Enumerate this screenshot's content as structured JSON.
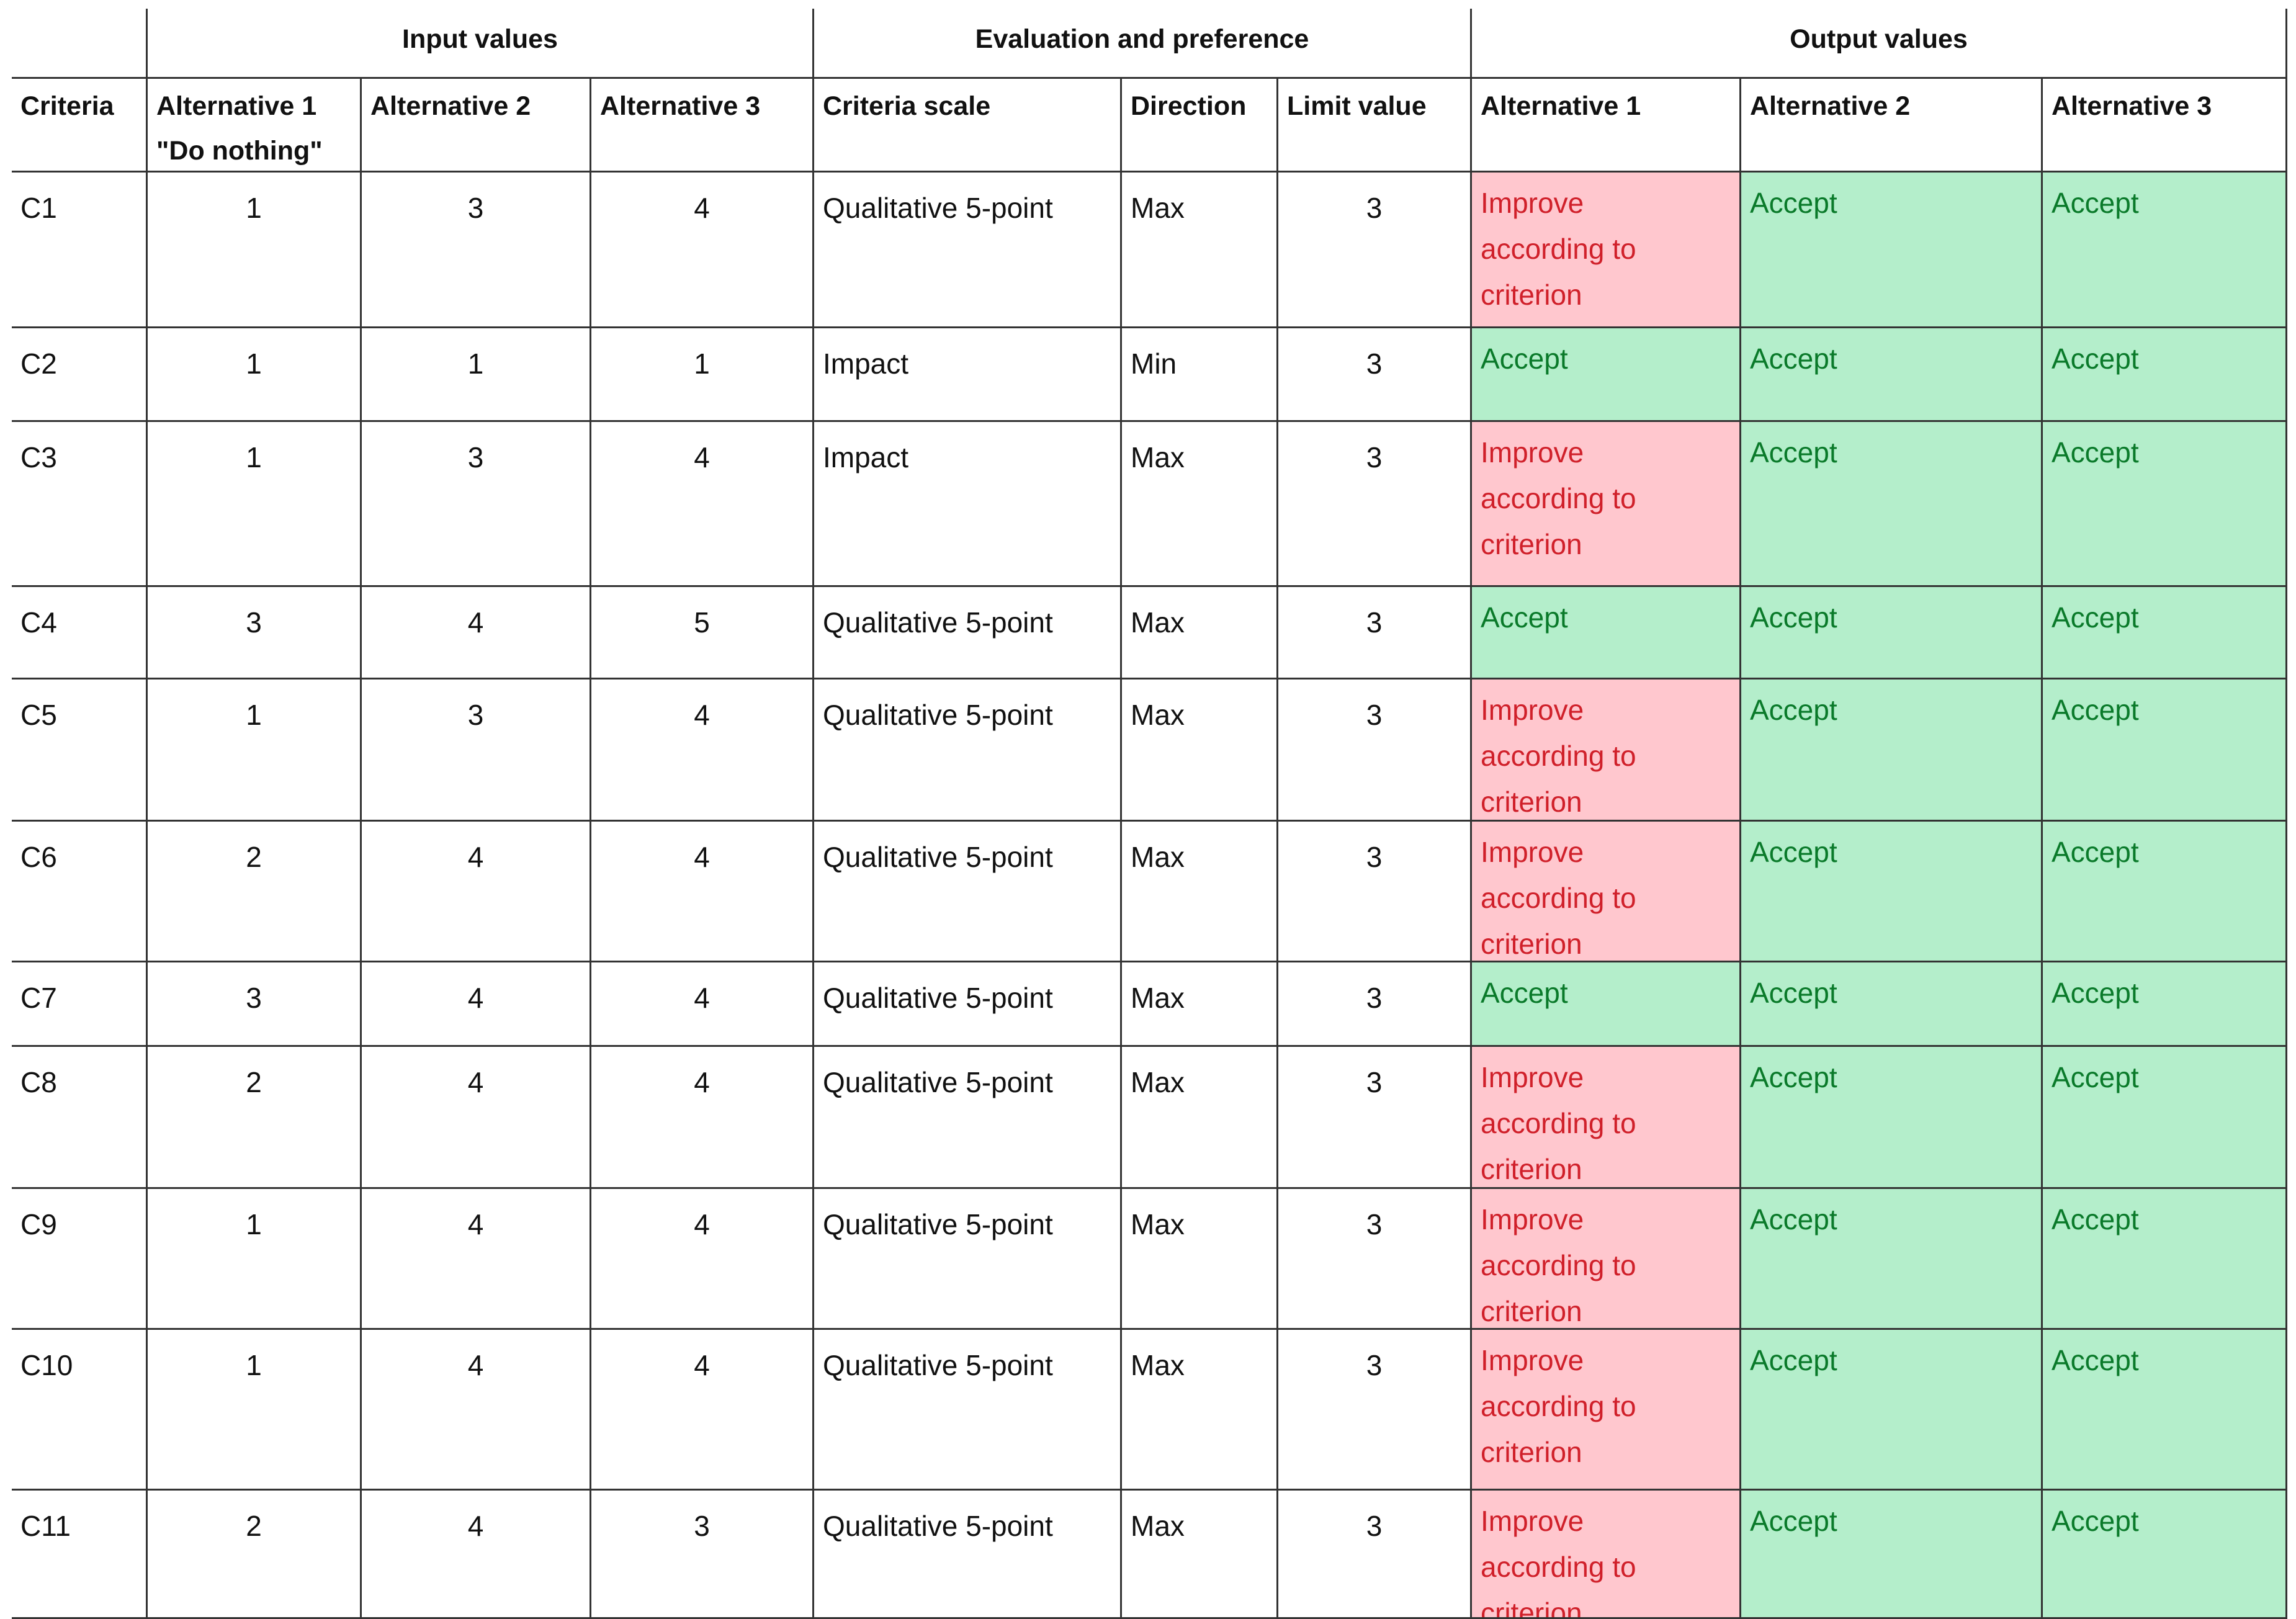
{
  "table": {
    "groups": [
      "Input values",
      "Evaluation and preference",
      "Output values"
    ],
    "columns": [
      "Criteria",
      "Alternative 1 \"Do nothing\"",
      "Alternative 2",
      "Alternative 3",
      "Criteria scale",
      "Direction",
      "Limit value",
      "Alternative 1",
      "Alternative 2",
      "Alternative 3"
    ],
    "styles": [
      {
        "fill": "#ffc7ce",
        "ink": "#d0202a"
      },
      {
        "fill": "#b4eecb",
        "ink": "#0a7a2a"
      }
    ],
    "rows": [
      {
        "criterion": "C1",
        "inputs": [
          1,
          3,
          4
        ],
        "scale": "Qualitative 5-point",
        "direction": "Max",
        "limit": 3,
        "outputs": [
          {
            "text": "Improve according to criterion",
            "style": 0
          },
          {
            "text": "Accept",
            "style": 1
          },
          {
            "text": "Accept",
            "style": 1
          }
        ]
      },
      {
        "criterion": "C2",
        "inputs": [
          1,
          1,
          1
        ],
        "scale": "Impact",
        "direction": "Min",
        "limit": 3,
        "outputs": [
          {
            "text": "Accept",
            "style": 1
          },
          {
            "text": "Accept",
            "style": 1
          },
          {
            "text": "Accept",
            "style": 1
          }
        ]
      },
      {
        "criterion": "C3",
        "inputs": [
          1,
          3,
          4
        ],
        "scale": "Impact",
        "direction": "Max",
        "limit": 3,
        "outputs": [
          {
            "text": "Improve according to criterion",
            "style": 0
          },
          {
            "text": "Accept",
            "style": 1
          },
          {
            "text": "Accept",
            "style": 1
          }
        ]
      },
      {
        "criterion": "C4",
        "inputs": [
          3,
          4,
          5
        ],
        "scale": "Qualitative 5-point",
        "direction": "Max",
        "limit": 3,
        "outputs": [
          {
            "text": "Accept",
            "style": 1
          },
          {
            "text": "Accept",
            "style": 1
          },
          {
            "text": "Accept",
            "style": 1
          }
        ]
      },
      {
        "criterion": "C5",
        "inputs": [
          1,
          3,
          4
        ],
        "scale": "Qualitative 5-point",
        "direction": "Max",
        "limit": 3,
        "outputs": [
          {
            "text": "Improve according to criterion",
            "style": 0
          },
          {
            "text": "Accept",
            "style": 1
          },
          {
            "text": "Accept",
            "style": 1
          }
        ]
      },
      {
        "criterion": "C6",
        "inputs": [
          2,
          4,
          4
        ],
        "scale": "Qualitative 5-point",
        "direction": "Max",
        "limit": 3,
        "outputs": [
          {
            "text": "Improve according to criterion",
            "style": 0
          },
          {
            "text": "Accept",
            "style": 1
          },
          {
            "text": "Accept",
            "style": 1
          }
        ]
      },
      {
        "criterion": "C7",
        "inputs": [
          3,
          4,
          4
        ],
        "scale": "Qualitative 5-point",
        "direction": "Max",
        "limit": 3,
        "outputs": [
          {
            "text": "Accept",
            "style": 1
          },
          {
            "text": "Accept",
            "style": 1
          },
          {
            "text": "Accept",
            "style": 1
          }
        ]
      },
      {
        "criterion": "C8",
        "inputs": [
          2,
          4,
          4
        ],
        "scale": "Qualitative 5-point",
        "direction": "Max",
        "limit": 3,
        "outputs": [
          {
            "text": "Improve according to criterion",
            "style": 0
          },
          {
            "text": "Accept",
            "style": 1
          },
          {
            "text": "Accept",
            "style": 1
          }
        ]
      },
      {
        "criterion": "C9",
        "inputs": [
          1,
          4,
          4
        ],
        "scale": "Qualitative 5-point",
        "direction": "Max",
        "limit": 3,
        "outputs": [
          {
            "text": "Improve according to criterion",
            "style": 0
          },
          {
            "text": "Accept",
            "style": 1
          },
          {
            "text": "Accept",
            "style": 1
          }
        ]
      },
      {
        "criterion": "C10",
        "inputs": [
          1,
          4,
          4
        ],
        "scale": "Qualitative 5-point",
        "direction": "Max",
        "limit": 3,
        "outputs": [
          {
            "text": "Improve according to criterion",
            "style": 0
          },
          {
            "text": "Accept",
            "style": 1
          },
          {
            "text": "Accept",
            "style": 1
          }
        ]
      },
      {
        "criterion": "C11",
        "inputs": [
          2,
          4,
          3
        ],
        "scale": "Qualitative 5-point",
        "direction": "Max",
        "limit": 3,
        "outputs": [
          {
            "text": "Improve according to criterion",
            "style": 0
          },
          {
            "text": "Accept",
            "style": 1
          },
          {
            "text": "Accept",
            "style": 1
          }
        ]
      }
    ]
  }
}
